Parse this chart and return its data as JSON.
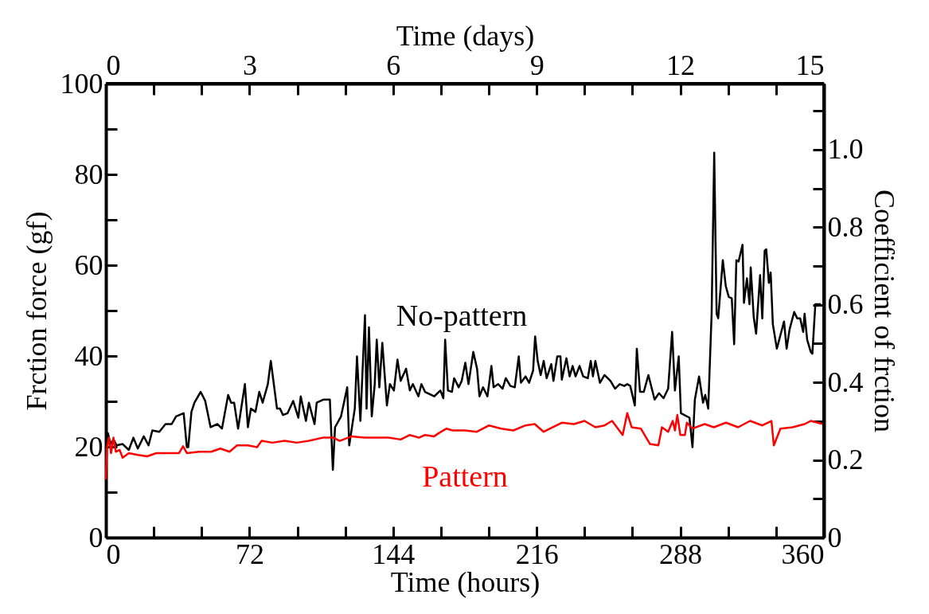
{
  "chart_data": {
    "type": "line",
    "xlabel": "Time (hours)",
    "x2label": "Time (days)",
    "ylabel": "Frction force (gf)",
    "y2label": "Coefficient of frction",
    "xlim": [
      0,
      360
    ],
    "xticks": [
      0,
      {
        "value": 24,
        "label": null
      },
      {
        "value": 48,
        "label": null
      },
      72,
      {
        "value": 96,
        "label": null
      },
      {
        "value": 120,
        "label": null
      },
      144,
      {
        "value": 168,
        "label": null
      },
      {
        "value": 192,
        "label": null
      },
      216,
      {
        "value": 240,
        "label": null
      },
      {
        "value": 264,
        "label": null
      },
      288,
      {
        "value": 312,
        "label": null
      },
      {
        "value": 336,
        "label": null
      },
      360
    ],
    "x2lim": [
      0,
      15
    ],
    "x2ticks": [
      0,
      {
        "value": 1,
        "label": null
      },
      {
        "value": 2,
        "label": null
      },
      3,
      {
        "value": 4,
        "label": null
      },
      {
        "value": 5,
        "label": null
      },
      6,
      {
        "value": 7,
        "label": null
      },
      {
        "value": 8,
        "label": null
      },
      9,
      {
        "value": 10,
        "label": null
      },
      {
        "value": 11,
        "label": null
      },
      12,
      {
        "value": 13,
        "label": null
      },
      {
        "value": 14,
        "label": null
      },
      15
    ],
    "ylim": [
      0,
      100
    ],
    "yticks": [
      0,
      {
        "value": 10,
        "label": null
      },
      20,
      {
        "value": 30,
        "label": null
      },
      40,
      {
        "value": 50,
        "label": null
      },
      60,
      {
        "value": 70,
        "label": null
      },
      80,
      {
        "value": 90,
        "label": null
      },
      100
    ],
    "y2lim": [
      0,
      1.17
    ],
    "y2ticks": [
      0,
      {
        "value": 0.1,
        "label": null
      },
      0.2,
      {
        "value": 0.3,
        "label": null
      },
      0.4,
      {
        "value": 0.5,
        "label": null
      },
      0.6,
      {
        "value": 0.7,
        "label": null
      },
      0.8,
      {
        "value": 0.9,
        "label": null
      },
      {
        "value": 1.0,
        "label": "1.0"
      },
      {
        "value": 1.1,
        "label": null
      }
    ],
    "series": [
      {
        "name": "No-pattern",
        "color": "#000000",
        "x": [
          0,
          1,
          2.3,
          3.8,
          5.4,
          8.4,
          11.5,
          13.8,
          16,
          19,
          21.4,
          23.3,
          26.8,
          29.9,
          33,
          35.2,
          39,
          40.6,
          41.3,
          42.9,
          44.4,
          47.5,
          49.8,
          52.5,
          55.9,
          58.2,
          61.3,
          62.8,
          64.3,
          66.3,
          69.7,
          71.2,
          72.7,
          75,
          76.9,
          78.6,
          81.2,
          82.7,
          85.8,
          87.3,
          88.8,
          91.1,
          93.9,
          96.5,
          97.7,
          100.3,
          101.8,
          104.6,
          105.7,
          109.2,
          112.3,
          113.8,
          114.9,
          117.9,
          121,
          122,
          124.8,
          125.9,
          127.6,
          129.9,
          130.7,
          131.9,
          133.3,
          134.8,
          135.8,
          137.1,
          138.6,
          140.9,
          142.4,
          144.4,
          146.2,
          147.8,
          150.5,
          152.4,
          153.9,
          156.7,
          158.2,
          160,
          164.6,
          167.7,
          169.2,
          170.1,
          171.5,
          173.5,
          174.6,
          176.9,
          178.4,
          180.2,
          181.8,
          184.2,
          186.1,
          187.3,
          189.1,
          191.3,
          193.3,
          194.4,
          196.7,
          198.9,
          200.5,
          202.8,
          205,
          207,
          208.1,
          210.4,
          212.2,
          214.2,
          215.2,
          216.5,
          218,
          219.5,
          221,
          223.3,
          224.4,
          226.3,
          227.9,
          228.6,
          230.9,
          232.5,
          234,
          235.5,
          237.5,
          239.3,
          241.6,
          243.1,
          244.2,
          245.4,
          247.7,
          250,
          253,
          255.3,
          257.6,
          259.9,
          261.4,
          262.9,
          265.2,
          266.2,
          267.8,
          269.7,
          272,
          275.1,
          277.3,
          279.6,
          281.9,
          283.9,
          285.3,
          287.2,
          288.3,
          292.6,
          294.1,
          295.3,
          297.4,
          299.4,
          300.5,
          302,
          303.7,
          305,
          306.2,
          307,
          309.3,
          310.8,
          312.3,
          313.8,
          315,
          316.1,
          317.2,
          319.2,
          319.9,
          321.4,
          322.7,
          323.3,
          324.8,
          326,
          328,
          329.1,
          330.3,
          331.1,
          332.4,
          333.3,
          334.4,
          336.4,
          338.2,
          340,
          341.3,
          342.8,
          345.1,
          346.6,
          348.1,
          349.6,
          350.3,
          351.6,
          353.4,
          354.2,
          355.7,
          358.5
        ],
        "values": [
          19.6,
          23,
          20.6,
          21.6,
          20.3,
          20.6,
          19.3,
          22,
          19.6,
          22.3,
          20.3,
          23.6,
          23.3,
          25,
          25,
          26.7,
          27.4,
          19.9,
          19.9,
          27.7,
          29.7,
          32.1,
          30.1,
          24.3,
          25,
          24,
          31.4,
          29.7,
          29.7,
          24,
          33.8,
          24.3,
          28.4,
          27.7,
          32.1,
          29.7,
          33.8,
          38.9,
          28.4,
          28.4,
          27,
          27.4,
          30.1,
          26.4,
          31.1,
          25.7,
          29.7,
          25,
          29.7,
          30.4,
          30.4,
          14.9,
          24.3,
          26.7,
          33.1,
          20.3,
          28.4,
          39.9,
          25.7,
          49,
          28.4,
          46.3,
          26.7,
          33.8,
          43.6,
          33.1,
          42.9,
          29.1,
          33.8,
          32.4,
          39.2,
          34.5,
          37.2,
          32.4,
          33.8,
          31.1,
          33.8,
          32.1,
          31.1,
          32.4,
          30.7,
          43.6,
          32.4,
          32.1,
          35.1,
          33.1,
          34.5,
          38.5,
          33.8,
          40.9,
          37.2,
          31.1,
          33.1,
          31.1,
          37.8,
          33.1,
          33.8,
          32.8,
          35.1,
          33.4,
          33.1,
          39.9,
          34.1,
          35.5,
          34.1,
          36.8,
          44.3,
          38.9,
          35.8,
          38.9,
          35.1,
          38.2,
          34.5,
          39.9,
          39.9,
          34.8,
          39.5,
          35.5,
          37.8,
          35.5,
          37.8,
          35.5,
          35.1,
          38.9,
          35.5,
          38.9,
          34.1,
          35.8,
          34.5,
          32.8,
          33.8,
          33.4,
          33.8,
          33.4,
          29.1,
          41.6,
          32.1,
          32.1,
          35.8,
          30.4,
          31.8,
          30.7,
          32.8,
          45.3,
          32.4,
          39.9,
          27.4,
          26.4,
          19.9,
          30.4,
          35.5,
          29.7,
          31.4,
          28.4,
          49.3,
          84.8,
          49.3,
          48.3,
          61.1,
          55.4,
          53,
          52.7,
          42.6,
          61.1,
          60.8,
          64.5,
          51.7,
          57.1,
          51.4,
          59.5,
          48.6,
          44.9,
          57.8,
          48.3,
          63.2,
          63.5,
          56.1,
          58.4,
          47,
          41.6,
          44.6,
          47.6,
          41.6,
          45.9,
          49.7,
          48.3,
          48.3,
          45.3,
          49.3,
          43.6,
          40.9,
          40.5,
          51.4,
          51.4
        ]
      },
      {
        "name": "Pattern",
        "color": "#ff0000",
        "x": [
          0,
          0.5,
          1.5,
          2.6,
          3.8,
          5,
          6.9,
          8.4,
          11.5,
          16,
          20.7,
          25.3,
          31.4,
          36.7,
          38.7,
          40.6,
          46.7,
          52.8,
          57.4,
          62,
          65.8,
          71.2,
          75.8,
          78.1,
          83.5,
          89.6,
          95.7,
          101.8,
          108.7,
          114.1,
          117.2,
          123.3,
          129.4,
          135.5,
          141.7,
          147.8,
          152.4,
          157,
          160,
          164.6,
          166.9,
          170.8,
          173.8,
          180,
          186,
          192.1,
          198.2,
          204.3,
          210.4,
          215,
          219.5,
          224.1,
          228.6,
          234.7,
          240,
          245.4,
          250,
          253.8,
          259.1,
          261.4,
          263.6,
          268.2,
          272.8,
          277,
          278.8,
          281.9,
          284.2,
          285.3,
          286.5,
          288,
          290.3,
          291.3,
          294.1,
          300.2,
          304.8,
          310.9,
          317,
          323,
          329.1,
          333.7,
          334.9,
          338.2,
          344.3,
          350.3,
          353.4,
          359.5
        ],
        "values": [
          12.8,
          19.6,
          22,
          18.6,
          22,
          18.9,
          19.3,
          17.6,
          18.6,
          18.2,
          17.9,
          18.6,
          18.6,
          18.6,
          20.1,
          18.6,
          18.9,
          18.9,
          19.6,
          18.9,
          20.3,
          20.3,
          19.9,
          21.3,
          20.9,
          21.3,
          20.9,
          21.3,
          22,
          22,
          21.3,
          22.3,
          22,
          22,
          22,
          21.6,
          22.6,
          22,
          22.6,
          22.3,
          23,
          24,
          23.6,
          23.6,
          23.3,
          24.7,
          24,
          23.6,
          24.7,
          25,
          23.3,
          24.3,
          25.3,
          25,
          25.7,
          24.3,
          24.7,
          25.7,
          22.6,
          27.4,
          24.3,
          24,
          20.6,
          20.3,
          24.3,
          23.3,
          25.7,
          23.6,
          27,
          22.6,
          22.6,
          25.3,
          24,
          25,
          24.3,
          25.3,
          24.3,
          25.7,
          24.7,
          25.7,
          20.3,
          24,
          24.3,
          25,
          25.7,
          25
        ]
      }
    ]
  }
}
